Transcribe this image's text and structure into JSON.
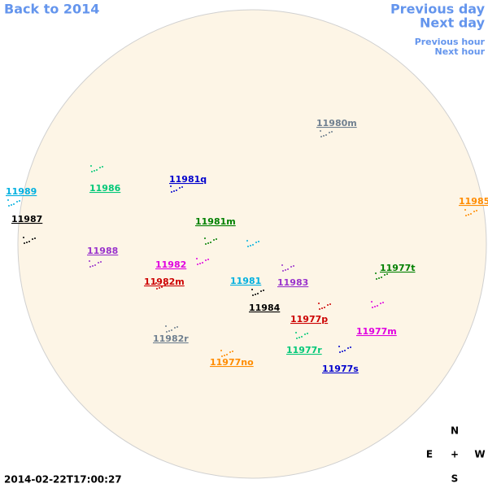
{
  "nav": {
    "back": "Back to 2014",
    "previous_day": "Previous day",
    "next_day": "Next day",
    "previous_hour": "Previous hour",
    "next_hour": "Next hour"
  },
  "regions": [
    {
      "label": "11980m",
      "color": "#708090"
    },
    {
      "label": "11986",
      "color": "#00c878"
    },
    {
      "label": "11981q",
      "color": "#0000cd"
    },
    {
      "label": "11989",
      "color": "#00b0e0"
    },
    {
      "label": "11985",
      "color": "#ff8c00"
    },
    {
      "label": "11987",
      "color": "#000000"
    },
    {
      "label": "11981m",
      "color": "#008000"
    },
    {
      "label": "11988",
      "color": "#9932cc"
    },
    {
      "label": "11982",
      "color": "#e000e0"
    },
    {
      "label": "11977t",
      "color": "#008000"
    },
    {
      "label": "11982m",
      "color": "#cc0000"
    },
    {
      "label": "11981",
      "color": "#00b0e0"
    },
    {
      "label": "11983",
      "color": "#9932cc"
    },
    {
      "label": "11984",
      "color": "#000000"
    },
    {
      "label": "11977p",
      "color": "#cc0000"
    },
    {
      "label": "11977m",
      "color": "#e000e0"
    },
    {
      "label": "11982r",
      "color": "#708090"
    },
    {
      "label": "11977r",
      "color": "#00c878"
    },
    {
      "label": "11977no",
      "color": "#ff8c00"
    },
    {
      "label": "11977s",
      "color": "#0000cd"
    }
  ],
  "compass": {
    "north": "N",
    "east": "E",
    "center": "+",
    "west": "W",
    "south": "S"
  },
  "timestamp": "2014-02-22T17:00:27"
}
